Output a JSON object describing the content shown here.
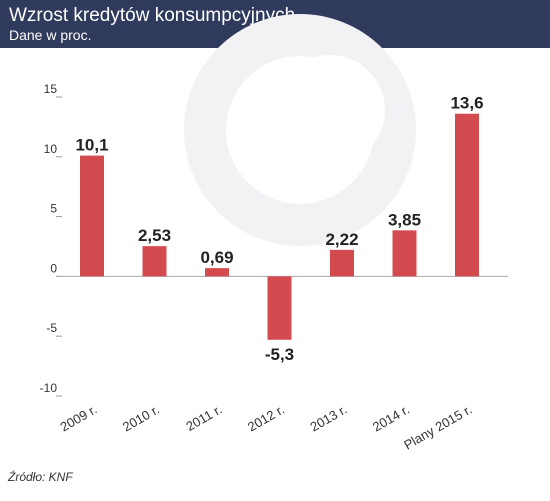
{
  "header": {
    "title": "Wzrost kredytów konsumpcyjnych",
    "subtitle": "Dane w proc."
  },
  "source": "Źródło: KNF",
  "colors": {
    "header_bg": "#2f3a5c",
    "bar": "#d44b4f",
    "axis_text": "#333333",
    "label_text": "#222222",
    "background": "#ffffff"
  },
  "chart_data": {
    "type": "bar",
    "categories": [
      "2009 r.",
      "2010 r.",
      "2011 r.",
      "2012 r.",
      "2013 r.",
      "2014 r.",
      "Plany 2015 r."
    ],
    "values": [
      10.1,
      2.53,
      0.69,
      -5.3,
      2.22,
      3.85,
      13.6
    ],
    "value_labels": [
      "10,1",
      "2,53",
      "0,69",
      "-5,3",
      "2,22",
      "3,85",
      "13,6"
    ],
    "yticks": [
      15,
      10,
      5,
      0,
      -5,
      -10
    ],
    "ytick_labels": [
      "15",
      "10",
      "5",
      "0",
      "-5",
      "-10"
    ],
    "ylim": [
      -10,
      15
    ],
    "grid": false,
    "xlabel": "",
    "ylabel": ""
  }
}
